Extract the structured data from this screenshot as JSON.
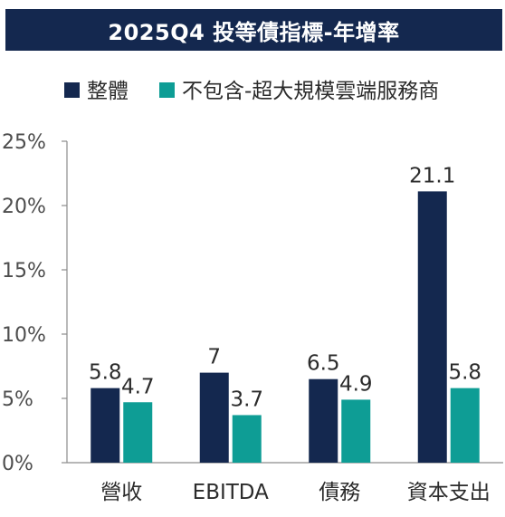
{
  "chart_data": {
    "type": "bar",
    "title": "2025Q4 投等債指標-年增率",
    "categories": [
      "營收",
      "EBITDA",
      "債務",
      "資本支出"
    ],
    "series": [
      {
        "name": "整體",
        "color": "#14284f",
        "values": [
          5.8,
          7,
          6.5,
          21.1
        ],
        "labels": [
          "5.8",
          "7",
          "6.5",
          "21.1"
        ]
      },
      {
        "name": "不包含-超大規模雲端服務商",
        "color": "#0e9d95",
        "values": [
          4.7,
          3.7,
          4.9,
          5.8
        ],
        "labels": [
          "4.7",
          "3.7",
          "4.9",
          "5.8"
        ]
      }
    ],
    "ylim": [
      0,
      25
    ],
    "yticks": [
      0,
      5,
      10,
      15,
      20,
      25
    ],
    "ytick_labels": [
      "0%",
      "5%",
      "10%",
      "15%",
      "20%",
      "25%"
    ],
    "xlabel": "",
    "ylabel": "",
    "legend_position": "top",
    "grid": false
  }
}
